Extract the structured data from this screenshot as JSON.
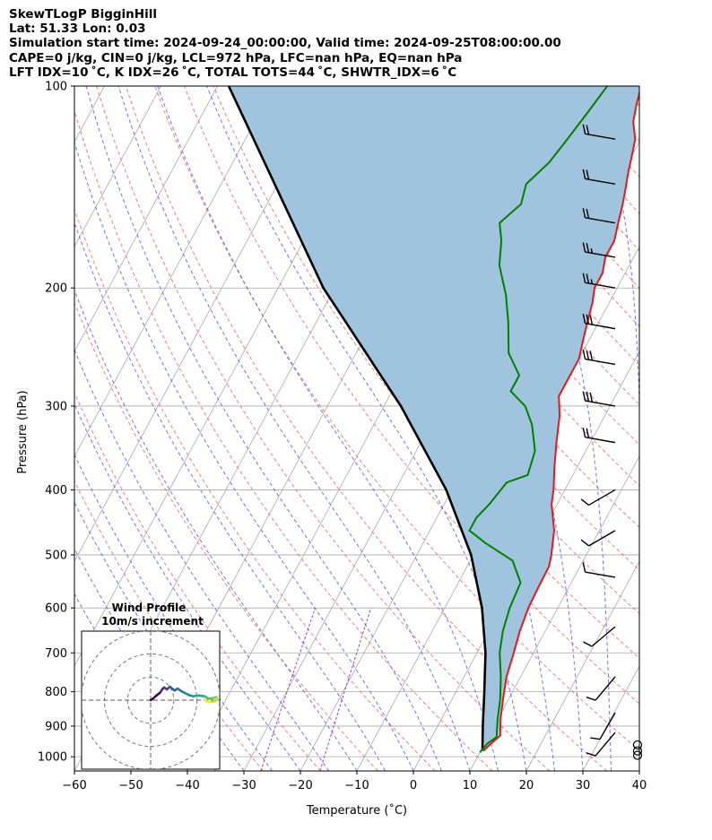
{
  "header": {
    "line1": "SkewTLogP BigginHill",
    "line2": "Lat: 51.33   Lon: 0.03",
    "line3": "Simulation start time: 2024-09-24_00:00:00, Valid time: 2024-09-25T08:00:00.00",
    "line4": "CAPE=0 j/kg, CIN=0 j/kg, LCL=972 hPa, LFC=nan hPa, EQ=nan hPa",
    "line5": "LFT IDX=10 ˚C, K IDX=26 ˚C, TOTAL TOTS=44 ˚C, SHWTR_IDX=6 ˚C"
  },
  "chart_data": {
    "type": "line",
    "xlabel": "Temperature (˚C)",
    "ylabel": "Pressure (hPa)",
    "xlim": [
      -60,
      40
    ],
    "ylim": [
      1050,
      100
    ],
    "y_scale": "log",
    "x_ticks": [
      -60,
      -50,
      -40,
      -30,
      -20,
      -10,
      0,
      10,
      20,
      30,
      40
    ],
    "x_tick_labels": [
      "−60",
      "−50",
      "−40",
      "−30",
      "−20",
      "−10",
      "0",
      "10",
      "20",
      "30",
      "40"
    ],
    "y_ticks": [
      1000,
      900,
      800,
      700,
      600,
      500,
      400,
      300,
      200,
      100
    ],
    "y_tick_labels": [
      "1000",
      "900",
      "800",
      "700",
      "600",
      "500",
      "400",
      "300",
      "200",
      "100"
    ],
    "grid": true,
    "colors": {
      "temperature": "#e31a1c",
      "dewpoint": "#008000",
      "parcel": "#000000",
      "shade": "#a0c4de",
      "dry_adiabat": "#f06a6a",
      "moist_adiabat": "#5a5af0",
      "mixing_ratio": "#9b3fc9",
      "isotherm": "#a9a9a9"
    },
    "series": [
      {
        "key": "temperature",
        "points": [
          [
            10.5,
            980
          ],
          [
            11,
            960
          ],
          [
            12,
            930
          ],
          [
            10.5,
            880
          ],
          [
            9,
            820
          ],
          [
            7.5,
            760
          ],
          [
            6.5,
            700
          ],
          [
            5.5,
            650
          ],
          [
            4.8,
            600
          ],
          [
            4.6,
            560
          ],
          [
            4.5,
            520
          ],
          [
            3.8,
            500
          ],
          [
            2,
            460
          ],
          [
            -1,
            420
          ],
          [
            -2,
            400
          ],
          [
            -4,
            370
          ],
          [
            -6,
            340
          ],
          [
            -8,
            310
          ],
          [
            -10,
            290
          ],
          [
            -10,
            270
          ],
          [
            -10,
            255
          ],
          [
            -11,
            240
          ],
          [
            -12,
            225
          ],
          [
            -13,
            210
          ],
          [
            -14,
            200
          ],
          [
            -14,
            190
          ],
          [
            -15,
            180
          ],
          [
            -15,
            170
          ],
          [
            -16,
            160
          ],
          [
            -17,
            150
          ],
          [
            -18,
            142
          ],
          [
            -19,
            135
          ],
          [
            -20,
            127
          ],
          [
            -21,
            120
          ],
          [
            -23,
            113
          ],
          [
            -24,
            107
          ],
          [
            -25,
            100
          ]
        ]
      },
      {
        "key": "dewpoint",
        "points": [
          [
            10,
            985
          ],
          [
            10.5,
            955
          ],
          [
            11.5,
            935
          ],
          [
            10,
            880
          ],
          [
            8.5,
            820
          ],
          [
            6.5,
            760
          ],
          [
            4,
            700
          ],
          [
            2.5,
            650
          ],
          [
            1.5,
            600
          ],
          [
            1,
            550
          ],
          [
            -2.5,
            510
          ],
          [
            -9,
            480
          ],
          [
            -13,
            460
          ],
          [
            -13,
            450
          ],
          [
            -13,
            440
          ],
          [
            -12,
            420
          ],
          [
            -11,
            390
          ],
          [
            -8,
            380
          ],
          [
            -9,
            350
          ],
          [
            -12,
            320
          ],
          [
            -15,
            300
          ],
          [
            -19,
            285
          ],
          [
            -19,
            270
          ],
          [
            -23,
            250
          ],
          [
            -26,
            225
          ],
          [
            -29,
            205
          ],
          [
            -33,
            185
          ],
          [
            -35,
            170
          ],
          [
            -37,
            160
          ],
          [
            -35,
            150
          ],
          [
            -36,
            140
          ],
          [
            -34,
            130
          ],
          [
            -33,
            120
          ],
          [
            -32,
            110
          ],
          [
            -31,
            100
          ]
        ]
      },
      {
        "key": "parcel",
        "points": [
          [
            10.3,
            980
          ],
          [
            8,
            900
          ],
          [
            5,
            800
          ],
          [
            1.5,
            700
          ],
          [
            -3.4,
            600
          ],
          [
            -10.4,
            500
          ],
          [
            -21,
            400
          ],
          [
            -37,
            300
          ],
          [
            -62,
            200
          ],
          [
            -98,
            100
          ]
        ]
      }
    ],
    "inset": {
      "title": "Wind Profile",
      "subtitle": "10m/s increment",
      "hodograph": [
        [
          0,
          0
        ],
        [
          0.5,
          0.3
        ],
        [
          1.5,
          1.2
        ],
        [
          2.5,
          2
        ],
        [
          3,
          2.8
        ],
        [
          3.5,
          3.3
        ],
        [
          4.2,
          2.8
        ],
        [
          5,
          3.5
        ],
        [
          6.2,
          2.5
        ],
        [
          7,
          3
        ],
        [
          8,
          2.3
        ],
        [
          9,
          1.8
        ],
        [
          10,
          1.3
        ],
        [
          11,
          1
        ],
        [
          12.5,
          1.2
        ],
        [
          14,
          1
        ],
        [
          15,
          0.4
        ],
        [
          16,
          0.5
        ],
        [
          17,
          0.8
        ],
        [
          17.2,
          0.4
        ],
        [
          16.8,
          -0.2
        ],
        [
          15.5,
          -0.5
        ],
        [
          14.5,
          -0.3
        ],
        [
          14,
          0.2
        ]
      ]
    },
    "wind_barbs": [
      {
        "p": 120,
        "speed": 20,
        "dir": 280
      },
      {
        "p": 140,
        "speed": 20,
        "dir": 280
      },
      {
        "p": 160,
        "speed": 20,
        "dir": 280
      },
      {
        "p": 180,
        "speed": 25,
        "dir": 280
      },
      {
        "p": 200,
        "speed": 25,
        "dir": 280
      },
      {
        "p": 230,
        "speed": 30,
        "dir": 280
      },
      {
        "p": 260,
        "speed": 30,
        "dir": 280
      },
      {
        "p": 300,
        "speed": 30,
        "dir": 280
      },
      {
        "p": 340,
        "speed": 20,
        "dir": 280
      },
      {
        "p": 400,
        "speed": 10,
        "dir": 240
      },
      {
        "p": 460,
        "speed": 10,
        "dir": 240
      },
      {
        "p": 540,
        "speed": 10,
        "dir": 280
      },
      {
        "p": 640,
        "speed": 10,
        "dir": 230
      },
      {
        "p": 760,
        "speed": 10,
        "dir": 220
      },
      {
        "p": 860,
        "speed": 10,
        "dir": 210
      },
      {
        "p": 920,
        "speed": 10,
        "dir": 220
      },
      {
        "p": 960,
        "speed": 0,
        "dir": 0
      },
      {
        "p": 980,
        "speed": 0,
        "dir": 0
      },
      {
        "p": 995,
        "speed": 0,
        "dir": 0
      }
    ]
  }
}
